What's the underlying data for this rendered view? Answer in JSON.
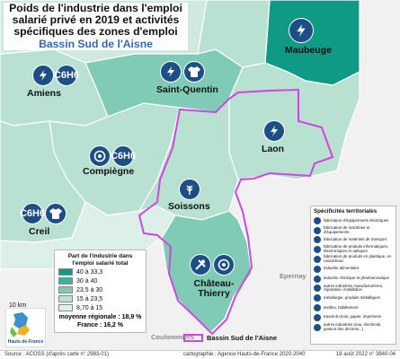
{
  "title": {
    "main": "Poids de l'industrie dans l'emploi salarié privé en 2019 et activités spécifiques des zones d'emploi",
    "subtitle": "Bassin Sud de l'Aisne"
  },
  "zones": [
    {
      "name": "Amiens",
      "share_class": "15 à 23,5",
      "icons": [
        "chimie-icon"
      ],
      "icon_text": [
        "C6H6"
      ]
    },
    {
      "name": "Saint-Quentin",
      "share_class": "23,5 à 30",
      "icons": [
        "electricite-icon",
        "textile-icon"
      ],
      "icon_text": [
        "",
        ""
      ]
    },
    {
      "name": "Maubeuge",
      "share_class": "30 à 40",
      "icons": [
        "electricite-icon"
      ],
      "icon_text": [
        ""
      ]
    },
    {
      "name": "Laon",
      "share_class": "15 à 23,5",
      "icons": [
        "electricite-icon"
      ],
      "icon_text": [
        ""
      ]
    },
    {
      "name": "Compiègne",
      "share_class": "15 à 23,5",
      "icons": [
        "caoutchouc-icon",
        "chimie-icon"
      ],
      "icon_text": [
        "",
        "C6H6"
      ]
    },
    {
      "name": "Creil",
      "share_class": "15 à 23,5",
      "icons": [
        "chimie-icon",
        "textile-icon"
      ],
      "icon_text": [
        "C6H6",
        ""
      ]
    },
    {
      "name": "Soissons",
      "share_class": "15 à 23,5",
      "icons": [
        "industrie-alimentaire-icon"
      ],
      "icon_text": [
        ""
      ]
    },
    {
      "name": "Château-Thierry",
      "share_class": "23,5 à 30",
      "icons": [
        "machines-icon",
        "caoutchouc-icon"
      ],
      "icon_text": [
        "",
        ""
      ]
    }
  ],
  "outside_places": [
    "Epernay",
    "Coulommiers"
  ],
  "legend": {
    "title": "Part de l'industrie dans l'emploi salarié total",
    "classes": [
      {
        "label": "40 à 33,3",
        "color": "#0f9a85"
      },
      {
        "label": "30 à 40",
        "color": "#3cb49c"
      },
      {
        "label": "23,5 à 30",
        "color": "#7fcbb5"
      },
      {
        "label": "15 à 23,5",
        "color": "#b9e1d2"
      },
      {
        "label": "8,70 à 15",
        "color": "#dcefe8"
      }
    ],
    "note_regional": "moyenne régionale : 18,9 %",
    "note_france": "France : 16,2 %"
  },
  "specificities": {
    "title": "Spécificités territoriales",
    "items": [
      "fabrication d'équipements électriques",
      "fabrication de machines et d'équipements",
      "fabrication de matériels de transport",
      "fabrication de produits informatiques, électroniques et optiques",
      "fabrication de produits en plastique, en caoutchouc",
      "industrie alimentaire",
      "industrie chimique et pharmaceutique",
      "autres industries manufacturières, réparation, installation",
      "métallurgie, produits métalliques",
      "textiles, habillement",
      "travail du bois, papier, imprimerie",
      "autres industries (eau, électricité, gestion des déchets...)"
    ]
  },
  "bassin_label": "Bassin Sud de l'Aisne",
  "scale_label": "10 km",
  "logo_text": "Hauts-de-France",
  "footer": {
    "source": "Source : ACOSS (d'après carte n° 2983-01)",
    "credit": "cartographie : Agence Hauts-de-France 2020-2040",
    "date": "18 août 2022 n° 3840-04"
  },
  "colors": {
    "bassin_outline": "#d146dd",
    "icon_fill": "#1d4f86",
    "outside_area": "#f4f4f4"
  }
}
